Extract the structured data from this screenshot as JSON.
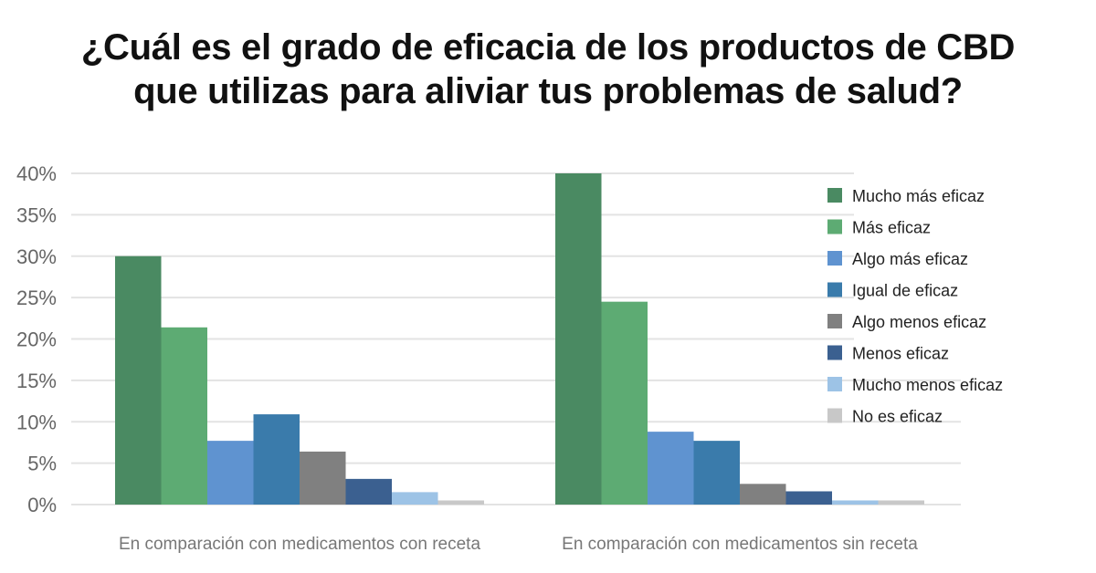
{
  "title_line1": "¿Cuál es el grado de eficacia de los productos de CBD",
  "title_line2": "que utilizas para aliviar tus problemas de salud?",
  "chart_data": {
    "type": "bar",
    "title": "¿Cuál es el grado de eficacia de los productos de CBD que utilizas para aliviar tus problemas de salud?",
    "xlabel": "",
    "ylabel": "",
    "ylim": [
      0,
      40
    ],
    "yticks": [
      "0%",
      "5%",
      "10%",
      "15%",
      "20%",
      "25%",
      "30%",
      "35%",
      "40%"
    ],
    "grid": true,
    "legend_position": "right",
    "categories": [
      "En comparación con medicamentos con receta",
      "En comparación con medicamentos sin receta"
    ],
    "series": [
      {
        "name": "Mucho más eficaz",
        "color": "#4a8a62",
        "values": [
          30.0,
          40.0
        ]
      },
      {
        "name": "Más eficaz",
        "color": "#5dab73",
        "values": [
          21.4,
          24.5
        ]
      },
      {
        "name": "Algo más eficaz",
        "color": "#5f93d0",
        "values": [
          7.7,
          8.8
        ]
      },
      {
        "name": "Igual de eficaz",
        "color": "#3a7bab",
        "values": [
          10.9,
          7.7
        ]
      },
      {
        "name": "Algo menos eficaz",
        "color": "#808080",
        "values": [
          6.4,
          2.5
        ]
      },
      {
        "name": "Menos eficaz",
        "color": "#3b6090",
        "values": [
          3.1,
          1.6
        ]
      },
      {
        "name": "Mucho menos eficaz",
        "color": "#9dc3e6",
        "values": [
          1.5,
          0.5
        ]
      },
      {
        "name": "No es eficaz",
        "color": "#c8c8c8",
        "values": [
          0.5,
          0.5
        ]
      }
    ]
  }
}
